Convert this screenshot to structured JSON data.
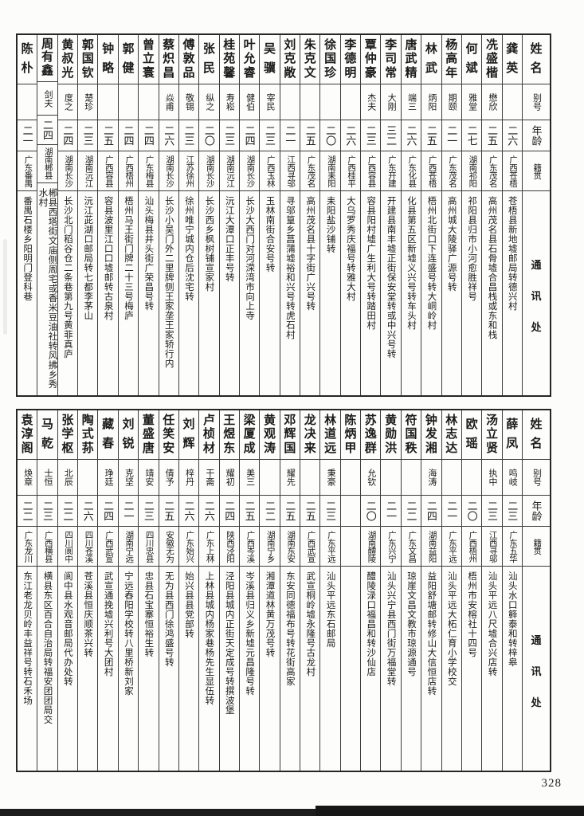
{
  "page_number": "328",
  "header_labels": {
    "name": "姓名",
    "alias": "别号",
    "age": "年龄",
    "origin": "籍贯",
    "address": "通讯处"
  },
  "tables": [
    {
      "title": "top-register",
      "people": [
        {
          "name": "龚英",
          "alias": "",
          "age": "二六",
          "origin": "广西苍梧",
          "address": "苍梧县新地墟邮局转德兴村"
        },
        {
          "name": "冼盛楷",
          "alias": "懋欣",
          "age": "二五",
          "origin": "广东茂名",
          "address": "高州茂名县石骨墟合昌栈或东和栈"
        },
        {
          "name": "何斌",
          "alias": "雅堂",
          "age": "二七",
          "origin": "湖南祁阳",
          "address": "祁阳县归市小河愈胜祥号"
        },
        {
          "name": "杨高年",
          "alias": "期颐",
          "age": "二一",
          "origin": "广东茂名",
          "address": "高州城大陵驿广源号转"
        },
        {
          "name": "林武",
          "alias": "炳阳",
          "age": "二五",
          "origin": "广西苍梧",
          "address": "梧州北街口下连盛号转大峒岭村"
        },
        {
          "name": "唐武精",
          "alias": "端三",
          "age": "二六",
          "origin": "广东化县",
          "address": "化县第五区新墟义兴号转车头村"
        },
        {
          "name": "李司常",
          "alias": "大刚",
          "age": "三二",
          "origin": "广东开建",
          "address": "开建县南丰墟正街保安堂转或中兴号转"
        },
        {
          "name": "覃仲豪",
          "alias": "杰夫",
          "age": "二三",
          "origin": "广西容县",
          "address": "容县阳村墟广生利大号转踏田村"
        },
        {
          "name": "李德明",
          "alias": "",
          "age": "二六",
          "origin": "广西桂平",
          "address": "大乌罗秀庆福号转雅大村"
        },
        {
          "name": "徐国珍",
          "alias": "",
          "age": "二〇",
          "origin": "湖南耒阳",
          "address": "耒阳盐沙铺转"
        },
        {
          "name": "朱克文",
          "alias": "",
          "age": "二五",
          "origin": "广东茂名",
          "address": "高州茂名县十字街广兴号转"
        },
        {
          "name": "刘克敞",
          "alias": "",
          "age": "二一",
          "origin": "江西寻邬",
          "address": "寻邬篁乡菖蒲墟裕和兴号转虎石村"
        },
        {
          "name": "吴骥",
          "alias": "宰民",
          "age": "二三",
          "origin": "广西玉林",
          "address": "玉林南街合安号转"
        },
        {
          "name": "叶允睿",
          "alias": "健伯",
          "age": "二四",
          "origin": "湖南长沙",
          "address": "长沙大西门对河溁湾市向上寺"
        },
        {
          "name": "桂苑馨",
          "alias": "寿崧",
          "age": "二三",
          "origin": "湖南沅江",
          "address": "沅江大潭口正丰号转"
        },
        {
          "name": "张民",
          "alias": "纵之",
          "age": "二〇",
          "origin": "湖南长沙",
          "address": "长沙西乡枫树铺宣家村"
        },
        {
          "name": "傅敦品",
          "alias": "敬锡",
          "age": "二三",
          "origin": "江苏徐州",
          "address": "徐州唯宁城内仓后沈宅转"
        },
        {
          "name": "蔡炽昌",
          "alias": "焱甫",
          "age": "二六",
          "origin": "湖南长沙",
          "address": "长沙小吴门外二里牌侧王家垄王家轿行内"
        },
        {
          "name": "曾立寰",
          "alias": "",
          "age": "二四",
          "origin": "广东梅县",
          "address": "汕头梅县井头街广荣昌号转"
        },
        {
          "name": "郭健",
          "alias": "",
          "age": "二四",
          "origin": "广西梧州",
          "address": "梧州马王街门牌二十三号梅庐"
        },
        {
          "name": "钟略",
          "alias": "",
          "age": "二五",
          "origin": "广西容县",
          "address": "容县波里江口口墟邮转古泉村"
        },
        {
          "name": "郭国钦",
          "alias": "楚珍",
          "age": "二三",
          "origin": "湖南沅江",
          "address": "沅江茈湖口邮局转七都李茅山"
        },
        {
          "name": "黄叔光",
          "alias": "度之",
          "age": "二四",
          "origin": "湖南长沙",
          "address": "长沙北门稻谷仓二条巷第九号黄菲真庐"
        },
        {
          "name": "周有鑫",
          "alias": "剑夫",
          "age": "二四",
          "origin": "湖南郴县",
          "address": "郴县西塔街文庙侧周宅或香米豆油社转风拂乡秀水村"
        },
        {
          "name": "陈朴",
          "alias": "",
          "age": "二一",
          "origin": "广东番禺",
          "address": "番禺石楼乡阳明门登科巷"
        }
      ]
    },
    {
      "title": "bottom-register",
      "people": [
        {
          "name": "薛凤",
          "alias": "鸣岐",
          "age": "二三",
          "origin": "广东五华",
          "address": "汕头水口簳泰和转梓皋"
        },
        {
          "name": "汤立贤",
          "alias": "执中",
          "age": "二三",
          "origin": "江西寻邬",
          "address": "汕头平远八尺墟合兴店转"
        },
        {
          "name": "欧瑶",
          "alias": "",
          "age": "二〇",
          "origin": "广西梧州",
          "address": "梧州市安榕社十四号"
        },
        {
          "name": "林志达",
          "alias": "",
          "age": "二一",
          "origin": "广东平远",
          "address": "汕头平远大柘仁育小学校交"
        },
        {
          "name": "钟发湘",
          "alias": "海涛",
          "age": "二四",
          "origin": "湖南益阳",
          "address": "益阳舒塘邮转修山大信恒店转"
        },
        {
          "name": "符国秩",
          "alias": "",
          "age": "二二",
          "origin": "广东文昌",
          "address": "琼崖文昌文教市琼源通号"
        },
        {
          "name": "黄勋洪",
          "alias": "",
          "age": "二一",
          "origin": "广东兴宁",
          "address": "汕头兴宁县西门街万福堂转"
        },
        {
          "name": "苏逸群",
          "alias": "允钦",
          "age": "二〇",
          "origin": "湖南醴陵",
          "address": "醴陵渌口福昌和转沙仙店"
        },
        {
          "name": "陈炳甲",
          "alias": "",
          "age": "",
          "origin": "",
          "address": ""
        },
        {
          "name": "林道远",
          "alias": "秉豪",
          "age": "二三",
          "origin": "广东平远",
          "address": "汕头平远东石邮局"
        },
        {
          "name": "龙决来",
          "alias": "",
          "age": "二五",
          "origin": "广西武宣",
          "address": "武宣桐岭墟永隆号古龙村"
        },
        {
          "name": "邓辉国",
          "alias": "耀先",
          "age": "二五",
          "origin": "湖南东安",
          "address": "东安同德福布号转花街高家"
        },
        {
          "name": "黄观涛",
          "alias": "",
          "age": "二二",
          "origin": "湖南宁乡",
          "address": "湘潭道林黄万茂号转"
        },
        {
          "name": "梁厦成",
          "alias": "美三",
          "age": "二五",
          "origin": "广西岑溪",
          "address": "岑溪县归义乡新墟元昌隆号转"
        },
        {
          "name": "王煜东",
          "alias": "耀初",
          "age": "二四",
          "origin": "陕西泾阳",
          "address": "泾阳县城内正街天定成号转撰波堡"
        },
        {
          "name": "卢桢材",
          "alias": "干斋",
          "age": "二六",
          "origin": "广东上林",
          "address": "上林县城内杨家巷杨先生显伍转"
        },
        {
          "name": "刘辉",
          "alias": "梓丹",
          "age": "二六",
          "origin": "广东始兴",
          "address": "始兴县县党部转"
        },
        {
          "name": "任笑安",
          "alias": "倩予",
          "age": "二五",
          "origin": "安徽无为",
          "address": "无为县西门徐鸿盛号转"
        },
        {
          "name": "董盛唐",
          "alias": "靖安",
          "age": "二三",
          "origin": "四川忠县",
          "address": "忠县石宝寨恒裕生转"
        },
        {
          "name": "刘锐",
          "alias": "克坚",
          "age": "二一",
          "origin": "湖南宁远",
          "address": "宁远舂阳学校转八里桥新刘家"
        },
        {
          "name": "藏春",
          "alias": "琤廷",
          "age": "二四",
          "origin": "广西武宣",
          "address": "武宣通挽墟兴利号大团村"
        },
        {
          "name": "陶式荪",
          "alias": "",
          "age": "二六",
          "origin": "四川苍溪",
          "address": "苍溪县恒庆顺茶兴转"
        },
        {
          "name": "张学枢",
          "alias": "北辰",
          "age": "二二",
          "origin": "四川阆中",
          "address": "阆中县水观音邮局代办处转"
        },
        {
          "name": "马乾",
          "alias": "士恒",
          "age": "二三",
          "origin": "广西横县",
          "address": "横县东区百合自治局转福安团团局交"
        },
        {
          "name": "袁淳阁",
          "alias": "焕章",
          "age": "二二",
          "origin": "广东龙川",
          "address": "东江老龙贝岭丰益祥号转石禾场"
        }
      ]
    }
  ]
}
